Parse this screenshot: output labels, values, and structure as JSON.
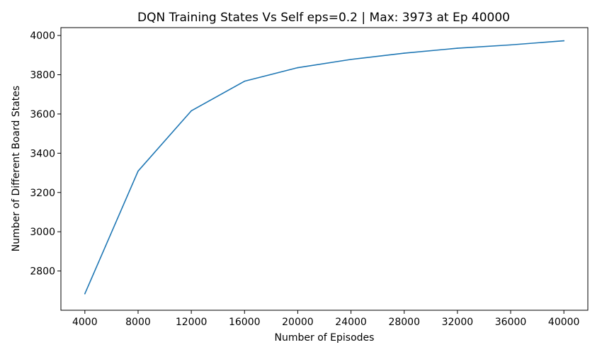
{
  "chart_data": {
    "type": "line",
    "title": "DQN Training States Vs Self eps=0.2 | Max: 3973 at Ep 40000",
    "xlabel": "Number of Episodes",
    "ylabel": "Number of Different Board States",
    "xlim": [
      2200,
      41800
    ],
    "ylim": [
      2600,
      4040
    ],
    "xticks": [
      4000,
      8000,
      12000,
      16000,
      20000,
      24000,
      28000,
      32000,
      36000,
      40000
    ],
    "yticks": [
      2800,
      3000,
      3200,
      3400,
      3600,
      3800,
      4000
    ],
    "grid": false,
    "legend": "none",
    "series": [
      {
        "color": "#1f77b4",
        "x": [
          4000,
          8000,
          12000,
          16000,
          20000,
          24000,
          28000,
          32000,
          36000,
          40000
        ],
        "y": [
          2684,
          3309,
          3616,
          3767,
          3836,
          3878,
          3910,
          3935,
          3952,
          3973
        ]
      }
    ]
  }
}
